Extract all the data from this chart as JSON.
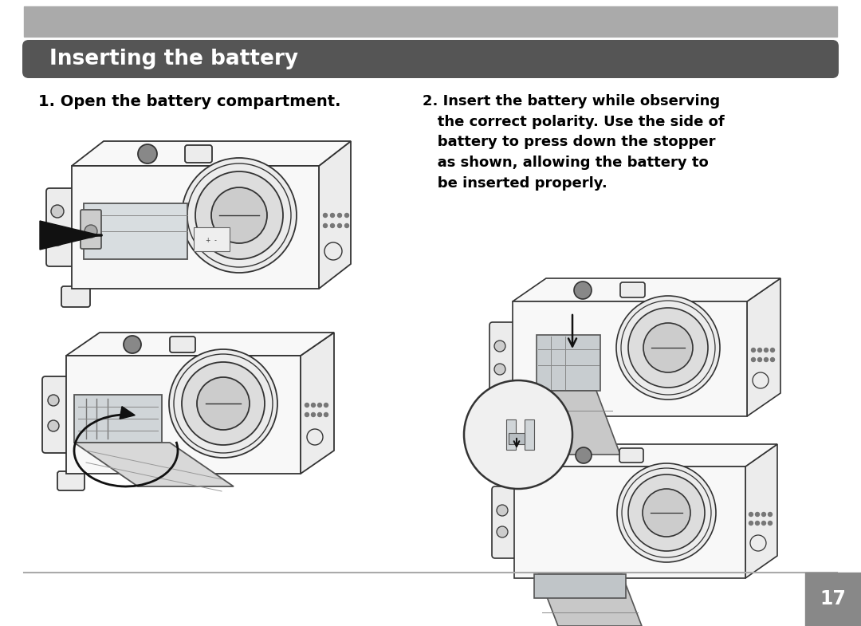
{
  "bg_color": "#ffffff",
  "top_bar_color": "#aaaaaa",
  "title_bar_color": "#555555",
  "title_text": "Inserting the battery",
  "title_color": "#ffffff",
  "title_fontsize": 19,
  "step1_text": "1. Open the battery compartment.",
  "step1_fontsize": 14,
  "step2_text": "2. Insert the battery while observing\n   the correct polarity. Use the side of\n   battery to press down the stopper\n   as shown, allowing the battery to\n   be inserted properly.",
  "step2_fontsize": 13,
  "page_num": "17",
  "page_num_color": "#ffffff",
  "page_box_color": "#888888",
  "bottom_line_color": "#aaaaaa",
  "text_color": "#000000",
  "line_color": "#333333",
  "body_fill": "#f8f8f8",
  "body_fill2": "#ececec",
  "dark_fill": "#cccccc",
  "mid_fill": "#e0e0e0"
}
